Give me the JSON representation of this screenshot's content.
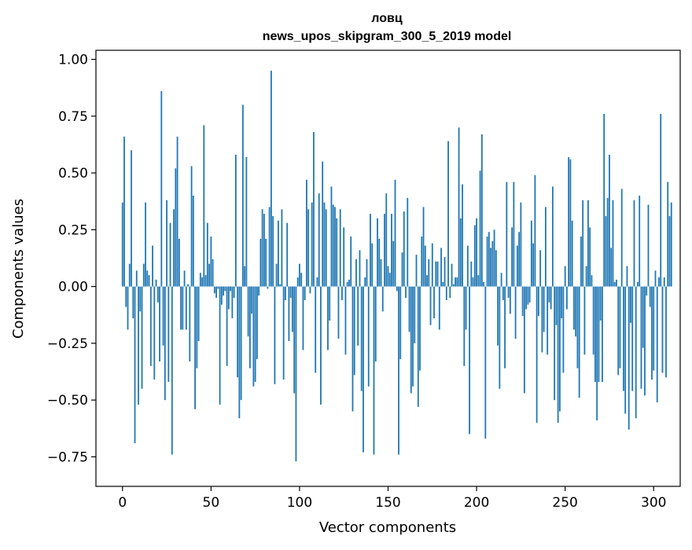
{
  "chart_data": {
    "type": "bar",
    "title": "ловц",
    "subtitle": "news_upos_skipgram_300_5_2019 model",
    "xlabel": "Vector components",
    "ylabel": "Components values",
    "xlim": [
      -15,
      315
    ],
    "ylim": [
      -0.88,
      1.04
    ],
    "x_ticks": [
      0,
      50,
      100,
      150,
      200,
      250,
      300
    ],
    "x_tick_labels": [
      "0",
      "50",
      "100",
      "150",
      "200",
      "250",
      "300"
    ],
    "y_ticks": [
      -0.75,
      -0.5,
      -0.25,
      0,
      0.25,
      0.5,
      0.75,
      1.0
    ],
    "y_tick_labels": [
      "−0.75",
      "−0.50",
      "−0.25",
      "0.00",
      "0.25",
      "0.50",
      "0.75",
      "1.00"
    ],
    "grid": false,
    "bar_color": "#1f77b4",
    "values": [
      0.37,
      0.66,
      -0.09,
      -0.19,
      0.1,
      0.6,
      -0.14,
      -0.69,
      0.07,
      -0.52,
      -0.11,
      -0.45,
      0.1,
      0.37,
      0.07,
      0.05,
      -0.35,
      0.18,
      -0.41,
      0.03,
      -0.07,
      -0.33,
      0.86,
      -0.26,
      -0.5,
      0.38,
      -0.42,
      0.28,
      -0.74,
      0.34,
      0.52,
      0.66,
      0.21,
      -0.19,
      -0.19,
      0.07,
      -0.19,
      0.01,
      -0.33,
      0.53,
      0.4,
      -0.54,
      -0.36,
      -0.24,
      0.06,
      0.04,
      0.71,
      0.05,
      0.28,
      0.1,
      0.22,
      0.12,
      -0.03,
      -0.05,
      -0.01,
      -0.52,
      -0.08,
      -0.04,
      -0.02,
      -0.35,
      -0.1,
      -0.02,
      -0.14,
      -0.05,
      0.58,
      -0.4,
      -0.58,
      -0.5,
      0.8,
      0.09,
      0.57,
      -0.22,
      -0.36,
      -0.12,
      -0.44,
      -0.42,
      -0.32,
      -0.04,
      0.21,
      0.34,
      0.32,
      0.21,
      -0.01,
      0.35,
      0.95,
      0.31,
      -0.43,
      0.1,
      0.29,
      0.01,
      0.34,
      -0.41,
      -0.06,
      0.28,
      -0.24,
      -0.05,
      -0.2,
      -0.47,
      -0.77,
      0.04,
      0.1,
      0.06,
      -0.28,
      -0.06,
      0.47,
      0.34,
      -0.03,
      0.37,
      0.68,
      -0.38,
      0.04,
      0.41,
      -0.52,
      0.55,
      0.37,
      0.34,
      -0.28,
      -0.15,
      0.44,
      0.36,
      0.35,
      0.3,
      -0.23,
      0.34,
      -0.06,
      0.26,
      -0.3,
      0.02,
      0.03,
      0.22,
      -0.55,
      -0.39,
      0.12,
      -0.26,
      0.16,
      -0.46,
      -0.73,
      0.04,
      0.12,
      -0.44,
      0.32,
      0.19,
      -0.74,
      -0.33,
      0.3,
      0.21,
      0.12,
      -0.11,
      0.32,
      0.41,
      0.09,
      0.06,
      0.32,
      0.2,
      0.47,
      -0.02,
      -0.74,
      -0.32,
      0.15,
      0.33,
      -0.05,
      0.39,
      -0.2,
      -0.47,
      -0.44,
      -0.25,
      0.14,
      -0.53,
      -0.37,
      0.22,
      0.35,
      0.18,
      0.05,
      0.12,
      -0.17,
      0.19,
      -0.14,
      0.11,
      0.11,
      -0.19,
      0.17,
      0.02,
      0.13,
      -0.06,
      0.64,
      -0.05,
      0.1,
      0.01,
      0.04,
      0.04,
      0.7,
      0.3,
      0.45,
      -0.35,
      -0.19,
      0.18,
      -0.65,
      0.11,
      0.04,
      0.27,
      0.3,
      0.05,
      0.51,
      0.67,
      0.02,
      -0.67,
      0.22,
      0.24,
      0.17,
      0.2,
      0.25,
      0.16,
      -0.26,
      -0.45,
      0.06,
      -0.06,
      -0.36,
      0.46,
      -0.05,
      -0.12,
      0.26,
      0.46,
      -0.23,
      0.18,
      0.24,
      0.37,
      -0.13,
      -0.47,
      -0.1,
      -0.08,
      -0.07,
      0.29,
      0.19,
      0.49,
      -0.6,
      -0.13,
      0.16,
      -0.29,
      -0.2,
      0.35,
      -0.3,
      -0.07,
      -0.1,
      0.44,
      -0.5,
      -0.17,
      -0.6,
      -0.55,
      -0.14,
      -0.38,
      0.09,
      -0.1,
      0.57,
      0.56,
      0.29,
      -0.19,
      -0.22,
      -0.36,
      -0.49,
      0.22,
      0.38,
      -0.3,
      0.09,
      0.38,
      0.26,
      0.05,
      -0.3,
      -0.42,
      -0.59,
      -0.42,
      -0.15,
      -0.42,
      0.76,
      0.31,
      0.39,
      0.58,
      0.17,
      0.38,
      0.02,
      0.03,
      -0.39,
      -0.36,
      0.43,
      -0.46,
      -0.56,
      0.09,
      -0.63,
      -0.16,
      -0.46,
      0.38,
      -0.58,
      0.02,
      0.4,
      -0.45,
      -0.27,
      -0.48,
      -0.04,
      0.36,
      -0.09,
      -0.41,
      -0.37,
      0.07,
      -0.51,
      0.04,
      0.76,
      -0.38,
      0.04,
      -0.4,
      0.46,
      0.31,
      0.37
    ]
  }
}
